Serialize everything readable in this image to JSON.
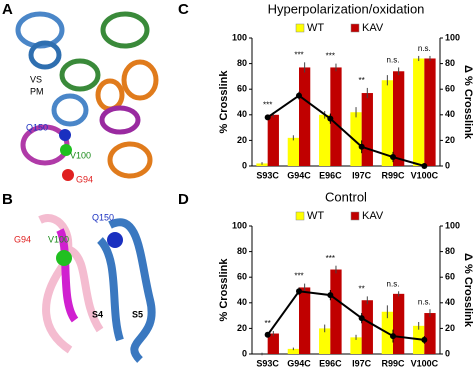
{
  "panels": {
    "labels": [
      "A",
      "B",
      "C",
      "D"
    ],
    "structure_a": [
      "VS",
      "PM",
      "Q150",
      "V100",
      "G94"
    ],
    "structure_b": [
      "G94",
      "V100",
      "Q150",
      "S4",
      "S5"
    ]
  },
  "chart_data": [
    {
      "type": "bar",
      "title": "Hyperpolarization/oxidation",
      "ylabel": "% Crosslink",
      "y2label": "Δ % Crosslink",
      "categories": [
        "S93C",
        "G94C",
        "E96C",
        "I97C",
        "R99C",
        "V100C"
      ],
      "series": [
        {
          "name": "WT",
          "color": "#ffff00",
          "values": [
            2,
            22,
            40,
            42,
            67,
            84
          ],
          "errors": [
            1,
            2,
            3,
            4,
            4,
            2
          ]
        },
        {
          "name": "KAV",
          "color": "#c00000",
          "values": [
            40,
            77,
            77,
            57,
            74,
            84
          ],
          "errors": [
            2,
            4,
            3,
            4,
            3,
            2
          ]
        },
        {
          "color": "#000000",
          "axis": "y2",
          "values": [
            38,
            55,
            37,
            15,
            7,
            0
          ],
          "errors": [
            2,
            3,
            4,
            5,
            4,
            2
          ]
        }
      ],
      "annotations": [
        "***",
        "***",
        "***",
        "**",
        "n.s.",
        "n.s."
      ],
      "ylim": [
        0,
        100
      ],
      "yticks": [
        0,
        20,
        40,
        60,
        80,
        100
      ],
      "y2lim": [
        0,
        100
      ],
      "y2ticks": [
        0,
        20,
        40,
        60,
        80,
        100
      ],
      "legend": "top"
    },
    {
      "type": "bar",
      "title": "Control",
      "ylabel": "% Crosslink",
      "y2label": "Δ % Crosslink",
      "categories": [
        "S93C",
        "G94C",
        "E96C",
        "I97C",
        "R99C",
        "V100C"
      ],
      "series": [
        {
          "name": "WT",
          "color": "#ffff00",
          "values": [
            0,
            4,
            20,
            13,
            33,
            22
          ],
          "errors": [
            1,
            1,
            3,
            2,
            5,
            3
          ]
        },
        {
          "name": "KAV",
          "color": "#c00000",
          "values": [
            16,
            52,
            66,
            42,
            47,
            32
          ],
          "errors": [
            2,
            3,
            3,
            3,
            2,
            3
          ]
        },
        {
          "color": "#000000",
          "axis": "y2",
          "values": [
            15,
            49,
            46,
            28,
            14,
            11
          ],
          "errors": [
            2,
            3,
            4,
            4,
            5,
            3
          ]
        }
      ],
      "annotations": [
        "**",
        "***",
        "***",
        "**",
        "n.s.",
        "n.s."
      ],
      "ylim": [
        0,
        100
      ],
      "yticks": [
        0,
        20,
        40,
        60,
        80,
        100
      ],
      "y2lim": [
        0,
        100
      ],
      "y2ticks": [
        0,
        20,
        40,
        60,
        80,
        100
      ],
      "legend": "top"
    }
  ]
}
